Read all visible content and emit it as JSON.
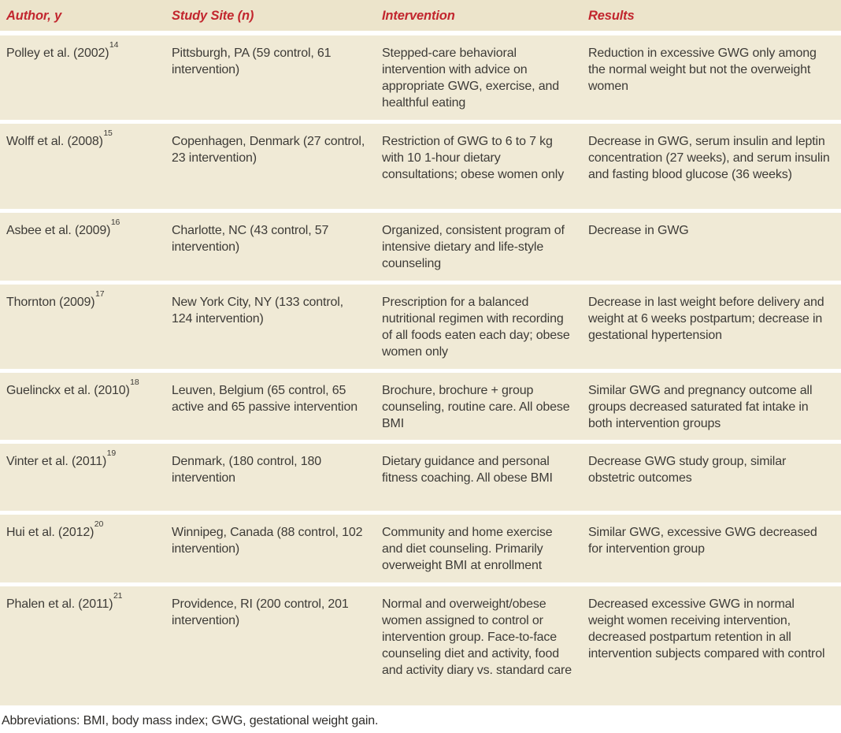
{
  "colors": {
    "header_text": "#c2262e",
    "header_bg": "#ece4cb",
    "row_bg": "#f0ead6",
    "separator": "#ffffff",
    "body_text": "#3d3b37"
  },
  "table": {
    "headers": [
      "Author, y",
      "Study Site (n)",
      "Intervention",
      "Results"
    ],
    "rows": [
      {
        "author": "Polley et al. (2002)",
        "ref": "14",
        "site": "Pittsburgh, PA (59 control, 61 intervention)",
        "intervention": "Stepped-care behavioral intervention with advice on appropriate GWG, exercise, and healthful eating",
        "results": "Reduction in excessive GWG only among the normal weight but not the overweight women"
      },
      {
        "author": "Wolff et al. (2008)",
        "ref": "15",
        "site": "Copenhagen, Denmark (27 control, 23 intervention)",
        "intervention": "Restriction of GWG to 6 to 7 kg with 10 1-hour dietary consultations; obese women only",
        "results": "Decrease in GWG, serum insulin and leptin concentration (27 weeks), and serum insulin and fasting blood glucose (36 weeks)"
      },
      {
        "author": "Asbee et al. (2009)",
        "ref": "16",
        "site": "Charlotte, NC (43 control, 57 intervention)",
        "intervention": "Organized, consistent program of intensive dietary and life-style counseling",
        "results": "Decrease in GWG"
      },
      {
        "author": "Thornton (2009)",
        "ref": "17",
        "site": "New York City, NY (133 control, 124 intervention)",
        "intervention": "Prescription for a balanced nutritional regimen with recording of all foods eaten each day; obese women only",
        "results": "Decrease in last weight before delivery and weight at 6 weeks postpartum; decrease in gestational hypertension"
      },
      {
        "author": "Guelinckx et al. (2010)",
        "ref": "18",
        "site": "Leuven, Belgium (65 control, 65 active and 65 passive intervention",
        "intervention": "Brochure, brochure + group counseling, routine care. All obese BMI",
        "results": "Similar GWG and pregnancy outcome all groups decreased saturated fat intake in both intervention groups"
      },
      {
        "author": "Vinter et al. (2011)",
        "ref": "19",
        "site": "Denmark, (180 control, 180 intervention",
        "intervention": "Dietary guidance and personal fitness coaching. All obese BMI",
        "results": "Decrease GWG study group, similar obstetric outcomes"
      },
      {
        "author": "Hui et al. (2012)",
        "ref": "20",
        "site": "Winnipeg, Canada (88 control, 102 intervention)",
        "intervention": "Community and home exercise and diet counseling. Primarily overweight BMI at enrollment",
        "results": "Similar GWG, excessive GWG decreased for intervention group"
      },
      {
        "author": "Phalen et al. (2011)",
        "ref": "21",
        "site": "Providence, RI (200 control, 201 intervention)",
        "intervention": "Normal and overweight/obese women assigned to control or intervention group. Face-to-face counseling diet and activity, food and activity diary vs. standard care",
        "results": "Decreased excessive GWG in normal weight women receiving intervention, decreased postpartum retention in all intervention subjects compared with control"
      }
    ],
    "footnote": "Abbreviations: BMI, body mass index; GWG, gestational weight gain."
  }
}
